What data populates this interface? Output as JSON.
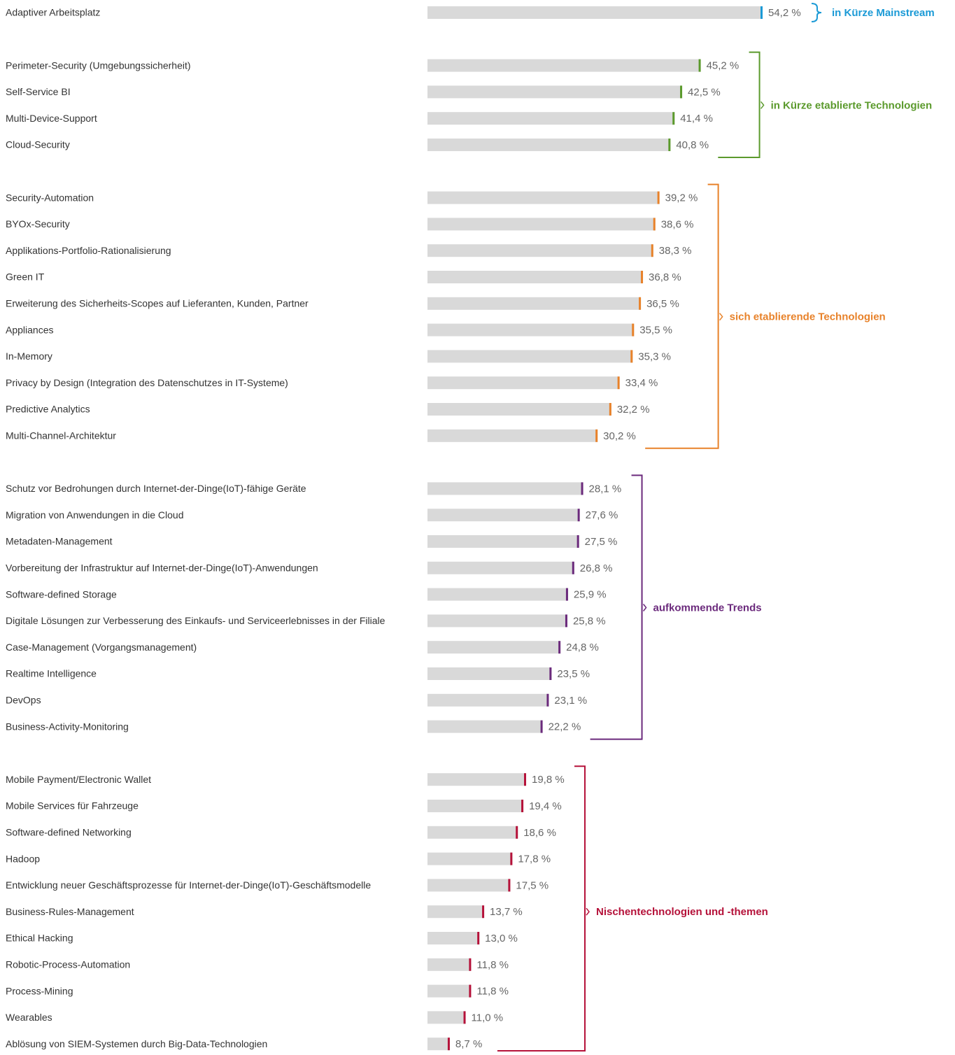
{
  "chart_data": {
    "type": "bar",
    "orientation": "horizontal",
    "bar_color": "#d9d9d9",
    "xlim": [
      5.45,
      54.2
    ],
    "series": [
      {
        "name": "in Kürze Mainstream",
        "color": "#1b9ad6",
        "categories": [
          "Adaptiver Arbeitsplatz"
        ],
        "values": [
          54.2
        ],
        "value_labels": [
          "54,2 %"
        ]
      },
      {
        "name": "in Kürze etablierte Technologien",
        "color": "#5b9a2c",
        "categories": [
          "Perimeter-Security (Umgebungssicherheit)",
          "Self-Service BI",
          "Multi-Device-Support",
          "Cloud-Security"
        ],
        "values": [
          45.2,
          42.5,
          41.4,
          40.8
        ],
        "value_labels": [
          "45,2 %",
          "42,5 %",
          "41,4 %",
          "40,8 %"
        ]
      },
      {
        "name": "sich etablierende Technologien",
        "color": "#e8822a",
        "categories": [
          "Security-Automation",
          "BYOx-Security",
          "Applikations-Portfolio-Rationalisierung",
          "Green IT",
          "Erweiterung des Sicherheits-Scopes auf Lieferanten, Kunden, Partner",
          "Appliances",
          "In-Memory",
          "Privacy by Design (Integration des Datenschutzes in IT-Systeme)",
          "Predictive Analytics",
          "Multi-Channel-Architektur"
        ],
        "values": [
          39.2,
          38.6,
          38.3,
          36.8,
          36.5,
          35.5,
          35.3,
          33.4,
          32.2,
          30.2
        ],
        "value_labels": [
          "39,2 %",
          "38,6 %",
          "38,3 %",
          "36,8 %",
          "36,5 %",
          "35,5 %",
          "35,3 %",
          "33,4 %",
          "32,2 %",
          "30,2 %"
        ]
      },
      {
        "name": "aufkommende Trends",
        "color": "#6b2a7c",
        "categories": [
          "Schutz vor Bedrohungen durch Internet-der-Dinge(IoT)-fähige Geräte",
          "Migration von Anwendungen in die Cloud",
          "Metadaten-Management",
          "Vorbereitung der Infrastruktur auf Internet-der-Dinge(IoT)-Anwendungen",
          "Software-defined Storage",
          "Digitale Lösungen zur Verbesserung des Einkaufs- und Serviceerlebnisses in der Filiale",
          "Case-Management (Vorgangsmanagement)",
          "Realtime Intelligence",
          "DevOps",
          "Business-Activity-Monitoring"
        ],
        "values": [
          28.1,
          27.6,
          27.5,
          26.8,
          25.9,
          25.8,
          24.8,
          23.5,
          23.1,
          22.2
        ],
        "value_labels": [
          "28,1 %",
          "27,6 %",
          "27,5 %",
          "26,8 %",
          "25,9 %",
          "25,8 %",
          "24,8 %",
          "23,5 %",
          "23,1 %",
          "22,2 %"
        ]
      },
      {
        "name": "Nischentechnologien und -themen",
        "color": "#b5123a",
        "categories": [
          "Mobile Payment/Electronic Wallet",
          "Mobile Services für Fahrzeuge",
          "Software-defined Networking",
          "Hadoop",
          "Entwicklung neuer Geschäftsprozesse für Internet-der-Dinge(IoT)-Geschäftsmodelle",
          "Business-Rules-Management",
          "Ethical Hacking",
          "Robotic-Process-Automation",
          "Process-Mining",
          "Wearables",
          "Ablösung von SIEM-Systemen durch Big-Data-Technologien"
        ],
        "values": [
          19.8,
          19.4,
          18.6,
          17.8,
          17.5,
          13.7,
          13.0,
          11.8,
          11.8,
          11.0,
          8.7
        ],
        "value_labels": [
          "19,8 %",
          "19,4 %",
          "18,6 %",
          "17,8 %",
          "17,5 %",
          "13,7 %",
          "13,0 %",
          "11,8 %",
          "11,8 %",
          "11,0 %",
          "8,7 %"
        ]
      }
    ]
  }
}
